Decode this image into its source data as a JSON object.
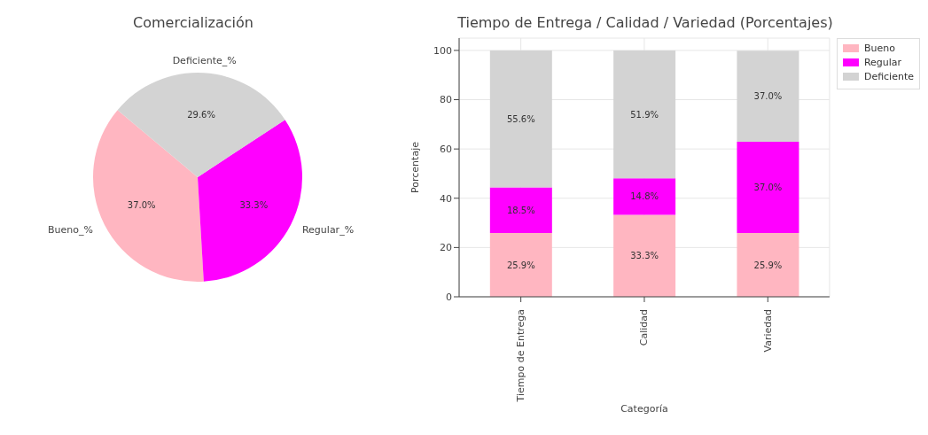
{
  "chart_data": [
    {
      "type": "pie",
      "title": "Comercialización",
      "categories": [
        "Bueno_%",
        "Regular_%",
        "Deficiente_%"
      ],
      "values": [
        37.0,
        33.3,
        29.6
      ],
      "colors": [
        "#ffb6c1",
        "#ff00ff",
        "#d3d3d3"
      ],
      "value_labels": [
        "37.0%",
        "33.3%",
        "29.6%"
      ],
      "legend": false
    },
    {
      "type": "bar",
      "title": "Tiempo de Entrega / Calidad / Variedad (Porcentajes)",
      "xlabel": "Categoría",
      "ylabel": "Porcentaje",
      "categories": [
        "Tiempo de Entrega",
        "Calidad",
        "Variedad"
      ],
      "stacked": true,
      "ylim": [
        0,
        105
      ],
      "yticks": [
        0,
        20,
        40,
        60,
        80,
        100
      ],
      "grid": true,
      "legend": "top right",
      "series": [
        {
          "name": "Bueno",
          "color": "#ffb6c1",
          "values": [
            25.9,
            33.3,
            25.9
          ],
          "value_labels": [
            "25.9%",
            "33.3%",
            "25.9%"
          ]
        },
        {
          "name": "Regular",
          "color": "#ff00ff",
          "values": [
            18.5,
            14.8,
            37.0
          ],
          "value_labels": [
            "18.5%",
            "14.8%",
            "37.0%"
          ]
        },
        {
          "name": "Deficiente",
          "color": "#d3d3d3",
          "values": [
            55.6,
            51.9,
            37.0
          ],
          "value_labels": [
            "55.6%",
            "51.9%",
            "37.0%"
          ]
        }
      ]
    }
  ]
}
